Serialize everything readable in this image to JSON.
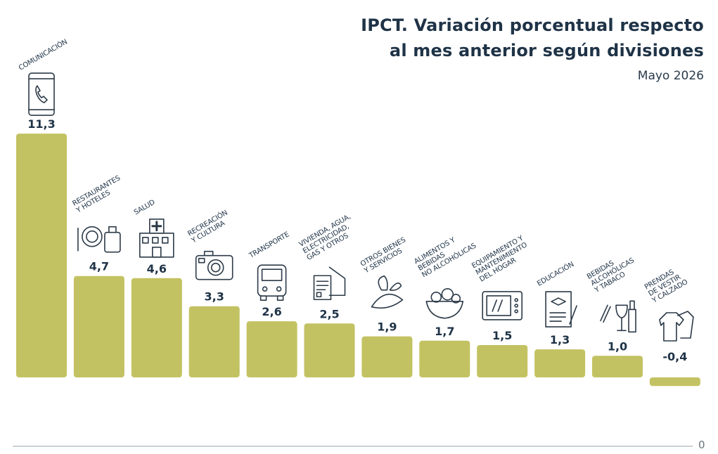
{
  "chart_data": {
    "type": "bar",
    "title_line1": "IPCT. Variación porcentual respecto",
    "title_line2": "al mes anterior según divisiones",
    "subtitle": "Mayo 2026",
    "categories": [
      [
        "COMUNICACIÓN"
      ],
      [
        "RESTAURANTES",
        "Y HOTELES"
      ],
      [
        "SALUD"
      ],
      [
        "RECREACIÓN",
        "Y CULTURA"
      ],
      [
        "TRANSPORTE"
      ],
      [
        "VIVIENDA, AGUA,",
        "ELECTRICIDAD,",
        "GAS Y OTROS"
      ],
      [
        "OTROS BIENES",
        "Y SERVICIOS"
      ],
      [
        "ALIMENTOS Y",
        "BEBIDAS",
        "NO ALCOHÓLICAS"
      ],
      [
        "EQUIPAMIENTO Y",
        "MANTENIMIENTO",
        "DEL HOGAR"
      ],
      [
        "EDUCACIÓN"
      ],
      [
        "BEBIDAS",
        "ALCOHÓLICAS",
        "Y TABACO"
      ],
      [
        "PRENDAS",
        "DE VESTIR",
        "Y CALZADO"
      ]
    ],
    "values": [
      11.3,
      4.7,
      4.6,
      3.3,
      2.6,
      2.5,
      1.9,
      1.7,
      1.5,
      1.3,
      1.0,
      -0.4
    ],
    "value_labels": [
      "11,3",
      "4,7",
      "4,6",
      "3,3",
      "2,6",
      "2,5",
      "1,9",
      "1,7",
      "1,5",
      "1,3",
      "1,0",
      "-0,4"
    ],
    "icons": [
      "phone-icon",
      "restaurant-hotel-icon",
      "hospital-icon",
      "camera-icon",
      "bus-icon",
      "house-bill-icon",
      "gift-ribbon-icon",
      "food-bowl-icon",
      "microwave-icon",
      "education-certificate-icon",
      "wine-tobacco-icon",
      "clothing-icon"
    ],
    "axis_zero_label": "0",
    "bar_color": "#c3c262",
    "text_color": "#1f3347",
    "icon_color": "#2c3a48"
  }
}
